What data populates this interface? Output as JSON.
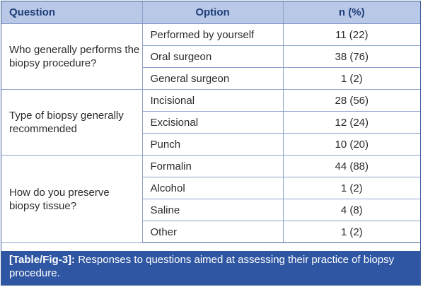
{
  "table": {
    "headers": {
      "question": "Question",
      "option": "Option",
      "n": "n (%)"
    },
    "groups": [
      {
        "question": "Who generally performs the biopsy procedure?",
        "rows": [
          {
            "option": "Performed by yourself",
            "n": "11 (22)"
          },
          {
            "option": "Oral surgeon",
            "n": "38 (76)"
          },
          {
            "option": "General surgeon",
            "n": "1 (2)"
          }
        ]
      },
      {
        "question": "Type of biopsy generally recommended",
        "rows": [
          {
            "option": "Incisional",
            "n": "28 (56)"
          },
          {
            "option": "Excisional",
            "n": "12 (24)"
          },
          {
            "option": "Punch",
            "n": "10 (20)"
          }
        ]
      },
      {
        "question": "How do you preserve biopsy tissue?",
        "rows": [
          {
            "option": "Formalin",
            "n": "44 (88)"
          },
          {
            "option": "Alcohol",
            "n": "1 (2)"
          },
          {
            "option": "Saline",
            "n": "4 (8)"
          },
          {
            "option": "Other",
            "n": "1 (2)"
          }
        ]
      }
    ]
  },
  "caption": {
    "tag": "[Table/Fig-3]:",
    "text": " Responses to questions aimed at assessing their practice of biopsy procedure."
  }
}
